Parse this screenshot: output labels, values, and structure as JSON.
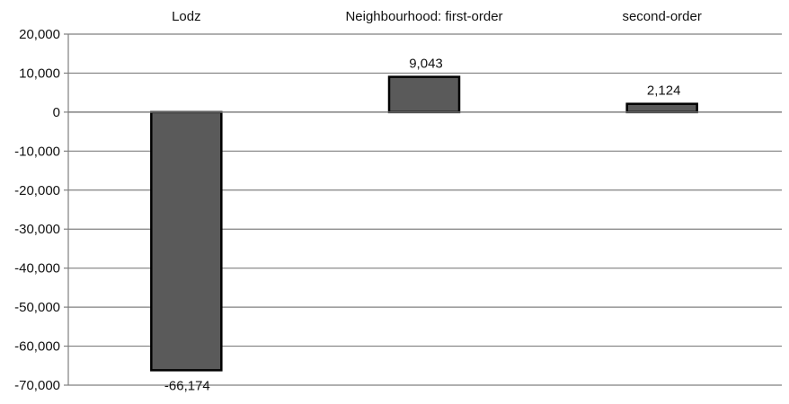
{
  "chart_data": {
    "type": "bar",
    "categories": [
      "Lodz",
      "Neighbourhood: first-order",
      "second-order"
    ],
    "values": [
      -66174,
      9043,
      2124
    ],
    "data_labels": [
      "-66,174",
      "9,043",
      "2,124"
    ],
    "title": "",
    "xlabel": "",
    "ylabel": "",
    "ylim": [
      -70000,
      20000
    ],
    "yticks": [
      20000,
      10000,
      0,
      -10000,
      -20000,
      -30000,
      -40000,
      -50000,
      -60000,
      -70000
    ],
    "ytick_labels": [
      "20,000",
      "10,000",
      "0",
      "-10,000",
      "-20,000",
      "-30,000",
      "-40,000",
      "-50,000",
      "-60,000",
      "-70,000"
    ],
    "category_label_position": "top",
    "grid": true,
    "legend": "none",
    "colors": {
      "bar_fill": "#5a5a5a",
      "bar_stroke": "#000000",
      "gridline": "#808080",
      "axis": "#808080",
      "zero_line": "#808080"
    }
  }
}
